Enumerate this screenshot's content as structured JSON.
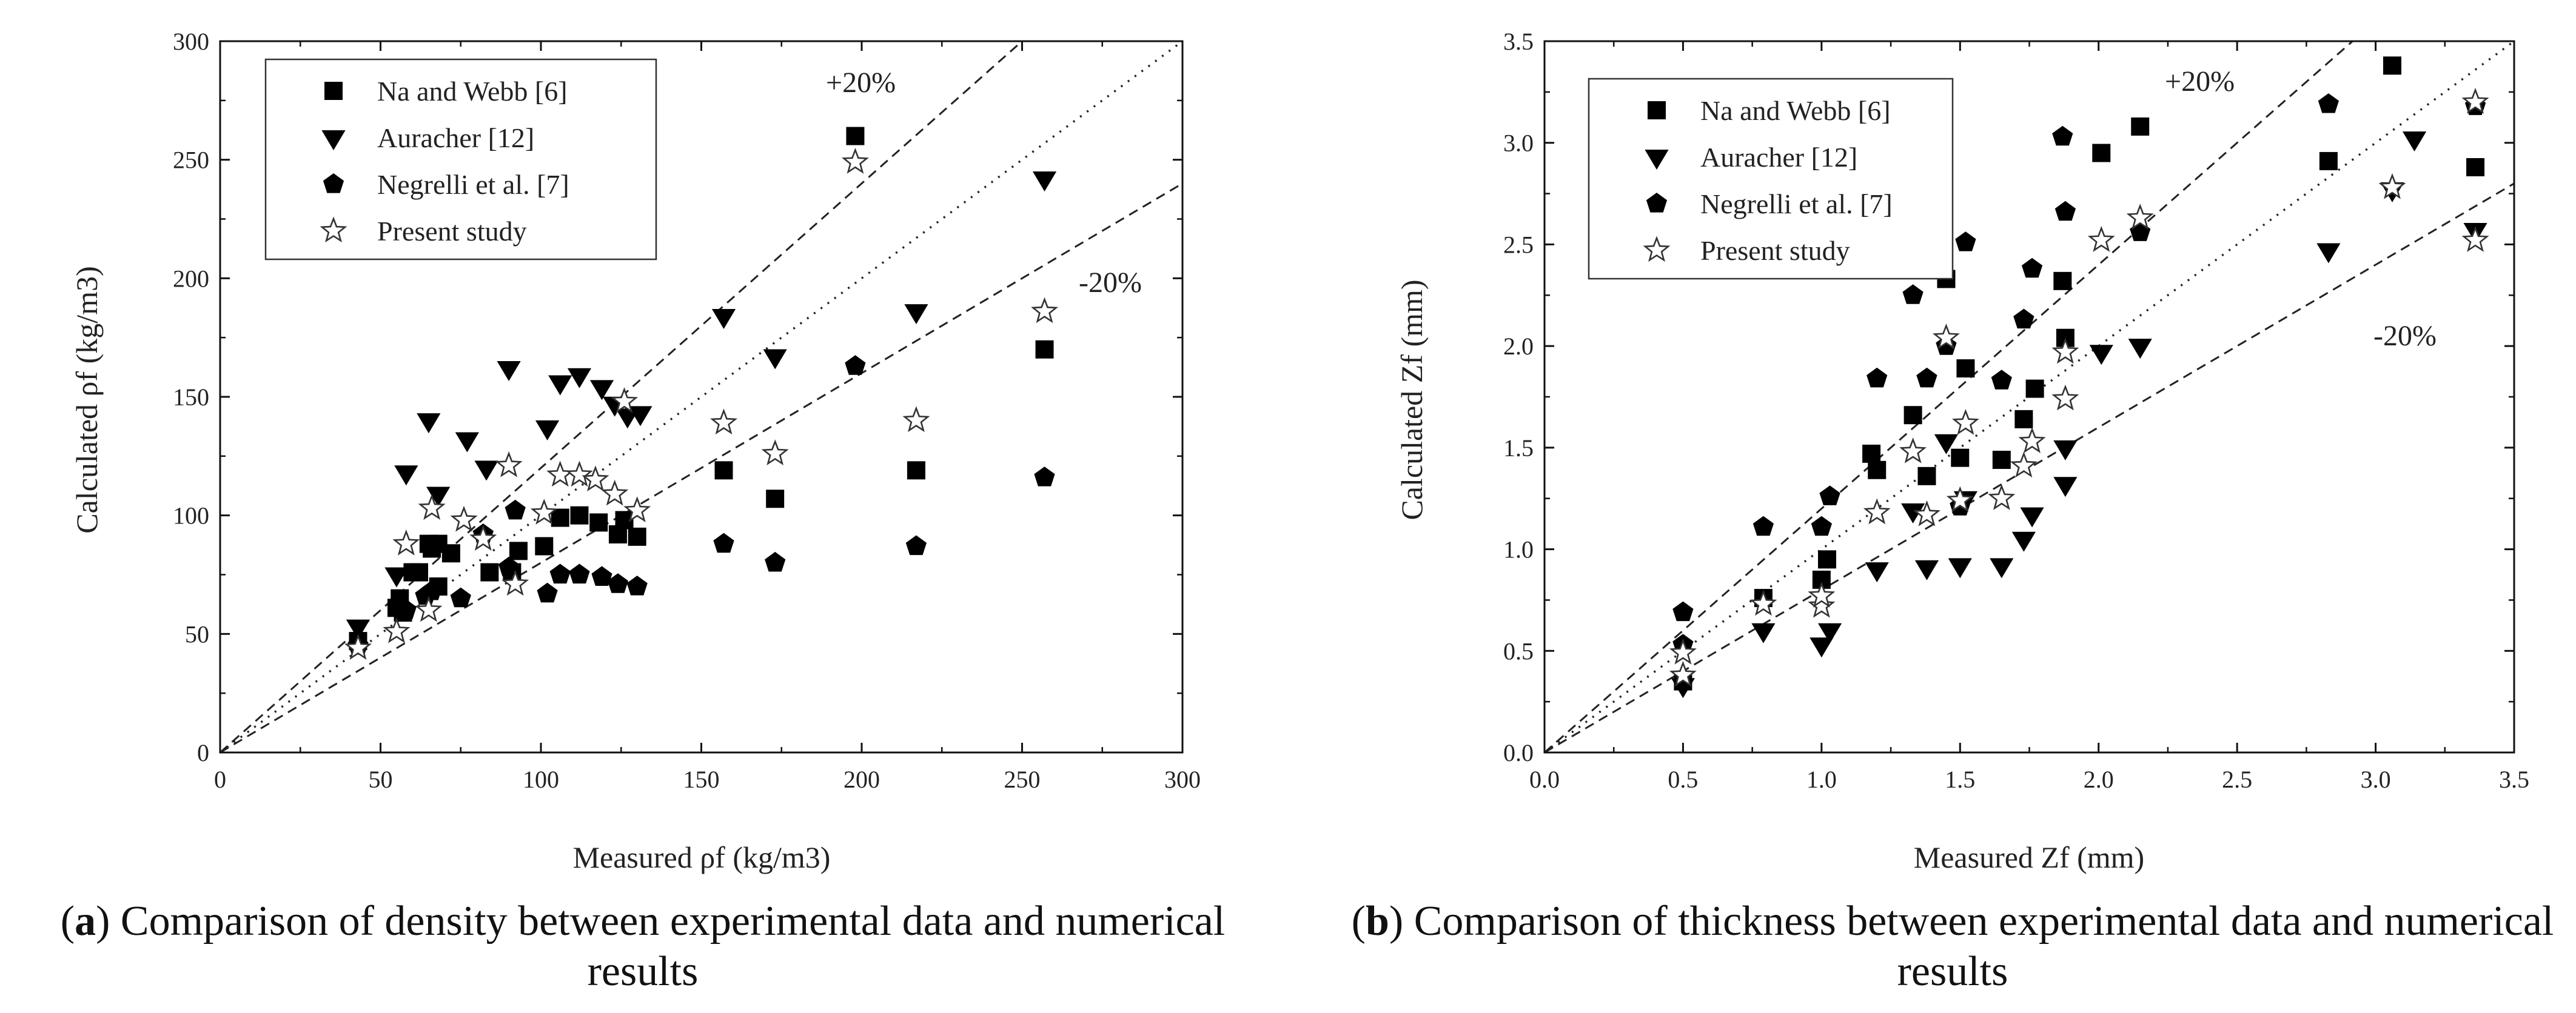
{
  "chart_data": [
    {
      "type": "scatter",
      "panel": "a",
      "xlabel": "Measured ρf (kg/m3)",
      "ylabel": "Calculated ρf (kg/m3)",
      "xlim": [
        0,
        300
      ],
      "ylim": [
        0,
        300
      ],
      "xticks": [
        "0",
        "50",
        "100",
        "150",
        "200",
        "250",
        "300"
      ],
      "yticks": [
        "0",
        "50",
        "100",
        "150",
        "200",
        "250",
        "300"
      ],
      "reference_lines": {
        "plus20_label": "+20%",
        "minus20_label": "-20%",
        "plus_factor": 1.2,
        "minus_factor": 0.8
      },
      "legend": [
        "Na and Webb [6]",
        "Auracher [12]",
        "Negrelli et al. [7]",
        "Present study"
      ],
      "series": [
        {
          "name": "Na and Webb [6]",
          "marker": "square",
          "points": [
            [
              43,
              47
            ],
            [
              55,
              61
            ],
            [
              56,
              65
            ],
            [
              57,
              59
            ],
            [
              60,
              76
            ],
            [
              62,
              76
            ],
            [
              65,
              88
            ],
            [
              66,
              86
            ],
            [
              68,
              88
            ],
            [
              68,
              70
            ],
            [
              72,
              84
            ],
            [
              84,
              76
            ],
            [
              91,
              76
            ],
            [
              93,
              85
            ],
            [
              101,
              87
            ],
            [
              106,
              99
            ],
            [
              112,
              100
            ],
            [
              118,
              97
            ],
            [
              124,
              92
            ],
            [
              126,
              98
            ],
            [
              130,
              91
            ],
            [
              157,
              119
            ],
            [
              173,
              107
            ],
            [
              198,
              260
            ],
            [
              217,
              119
            ],
            [
              257,
              170
            ]
          ]
        },
        {
          "name": "Auracher [12]",
          "marker": "triangle-down",
          "points": [
            [
              43,
              53
            ],
            [
              55,
              75
            ],
            [
              58,
              118
            ],
            [
              65,
              140
            ],
            [
              68,
              109
            ],
            [
              77,
              132
            ],
            [
              83,
              120
            ],
            [
              90,
              162
            ],
            [
              102,
              137
            ],
            [
              106,
              156
            ],
            [
              112,
              159
            ],
            [
              119,
              154
            ],
            [
              123,
              147
            ],
            [
              127,
              142
            ],
            [
              131,
              143
            ],
            [
              157,
              184
            ],
            [
              173,
              167
            ],
            [
              217,
              186
            ],
            [
              257,
              242
            ]
          ]
        },
        {
          "name": "Negrelli et al. [7]",
          "marker": "pentagon",
          "points": [
            [
              43,
              45
            ],
            [
              56,
              62
            ],
            [
              58,
              60
            ],
            [
              64,
              66
            ],
            [
              66,
              68
            ],
            [
              75,
              65
            ],
            [
              82,
              92
            ],
            [
              90,
              78
            ],
            [
              92,
              102
            ],
            [
              102,
              67
            ],
            [
              106,
              75
            ],
            [
              112,
              75
            ],
            [
              119,
              74
            ],
            [
              124,
              71
            ],
            [
              130,
              70
            ],
            [
              157,
              88
            ],
            [
              173,
              80
            ],
            [
              198,
              163
            ],
            [
              217,
              87
            ],
            [
              257,
              116
            ]
          ]
        },
        {
          "name": "Present study",
          "marker": "star-open",
          "points": [
            [
              43,
              44
            ],
            [
              55,
              51
            ],
            [
              58,
              88
            ],
            [
              65,
              60
            ],
            [
              66,
              103
            ],
            [
              76,
              98
            ],
            [
              82,
              90
            ],
            [
              90,
              121
            ],
            [
              92,
              71
            ],
            [
              101,
              101
            ],
            [
              106,
              117
            ],
            [
              112,
              117
            ],
            [
              117,
              115
            ],
            [
              123,
              109
            ],
            [
              126,
              148
            ],
            [
              130,
              102
            ],
            [
              157,
              139
            ],
            [
              173,
              126
            ],
            [
              198,
              249
            ],
            [
              217,
              140
            ],
            [
              257,
              186
            ]
          ]
        }
      ]
    },
    {
      "type": "scatter",
      "panel": "b",
      "xlabel": "Measured Zf (mm)",
      "ylabel": "Calculated Zf (mm)",
      "xlim": [
        0,
        3.5
      ],
      "ylim": [
        0,
        3.5
      ],
      "xticks": [
        "0.0",
        "0.5",
        "1.0",
        "1.5",
        "2.0",
        "2.5",
        "3.0",
        "3.5"
      ],
      "yticks": [
        "0.0",
        "0.5",
        "1.0",
        "1.5",
        "2.0",
        "2.5",
        "3.0",
        "3.5"
      ],
      "reference_lines": {
        "plus20_label": "+20%",
        "minus20_label": "-20%",
        "plus_factor": 1.2,
        "minus_factor": 0.8
      },
      "legend": [
        "Na and Webb [6]",
        "Auracher [12]",
        "Negrelli et al. [7]",
        "Present study"
      ],
      "series": [
        {
          "name": "Na and Webb [6]",
          "marker": "square",
          "points": [
            [
              0.5,
              0.35
            ],
            [
              0.79,
              0.76
            ],
            [
              1.0,
              0.85
            ],
            [
              1.02,
              0.95
            ],
            [
              1.18,
              1.47
            ],
            [
              1.2,
              1.39
            ],
            [
              1.33,
              1.66
            ],
            [
              1.38,
              1.36
            ],
            [
              1.45,
              2.33
            ],
            [
              1.5,
              1.45
            ],
            [
              1.52,
              1.89
            ],
            [
              1.65,
              1.44
            ],
            [
              1.73,
              1.64
            ],
            [
              1.77,
              1.79
            ],
            [
              1.87,
              2.32
            ],
            [
              1.88,
              2.04
            ],
            [
              2.01,
              2.95
            ],
            [
              2.15,
              3.08
            ],
            [
              2.83,
              2.91
            ],
            [
              3.06,
              3.38
            ],
            [
              3.36,
              2.88
            ]
          ]
        },
        {
          "name": "Auracher [12]",
          "marker": "triangle-down",
          "points": [
            [
              0.5,
              0.33
            ],
            [
              0.79,
              0.6
            ],
            [
              1.0,
              0.53
            ],
            [
              1.03,
              0.6
            ],
            [
              1.2,
              0.9
            ],
            [
              1.33,
              1.19
            ],
            [
              1.38,
              0.91
            ],
            [
              1.45,
              1.53
            ],
            [
              1.5,
              0.92
            ],
            [
              1.52,
              1.25
            ],
            [
              1.65,
              0.92
            ],
            [
              1.73,
              1.05
            ],
            [
              1.76,
              1.17
            ],
            [
              1.88,
              1.5
            ],
            [
              1.88,
              1.32
            ],
            [
              2.01,
              1.97
            ],
            [
              2.15,
              2.0
            ],
            [
              2.83,
              2.47
            ],
            [
              3.06,
              2.77
            ],
            [
              3.14,
              3.02
            ],
            [
              3.36,
              2.57
            ]
          ]
        },
        {
          "name": "Negrelli et al. [7]",
          "marker": "pentagon",
          "points": [
            [
              0.5,
              0.69
            ],
            [
              0.5,
              0.53
            ],
            [
              0.79,
              1.11
            ],
            [
              1.0,
              1.11
            ],
            [
              1.03,
              1.26
            ],
            [
              1.2,
              1.84
            ],
            [
              1.33,
              2.25
            ],
            [
              1.38,
              1.84
            ],
            [
              1.45,
              2.0
            ],
            [
              1.5,
              1.21
            ],
            [
              1.52,
              2.51
            ],
            [
              1.65,
              1.83
            ],
            [
              1.73,
              2.13
            ],
            [
              1.76,
              2.38
            ],
            [
              1.87,
              3.03
            ],
            [
              1.88,
              2.66
            ],
            [
              2.15,
              2.56
            ],
            [
              2.83,
              3.19
            ],
            [
              3.36,
              3.18
            ]
          ]
        },
        {
          "name": "Present study",
          "marker": "star-open",
          "points": [
            [
              0.5,
              0.38
            ],
            [
              0.5,
              0.49
            ],
            [
              0.79,
              0.73
            ],
            [
              1.0,
              0.72
            ],
            [
              1.0,
              0.77
            ],
            [
              1.2,
              1.18
            ],
            [
              1.33,
              1.48
            ],
            [
              1.38,
              1.17
            ],
            [
              1.45,
              2.04
            ],
            [
              1.5,
              1.24
            ],
            [
              1.52,
              1.62
            ],
            [
              1.65,
              1.25
            ],
            [
              1.73,
              1.41
            ],
            [
              1.76,
              1.53
            ],
            [
              1.88,
              1.97
            ],
            [
              1.88,
              1.74
            ],
            [
              2.01,
              2.52
            ],
            [
              2.15,
              2.63
            ],
            [
              3.06,
              2.78
            ],
            [
              3.36,
              2.52
            ],
            [
              3.36,
              3.2
            ]
          ]
        }
      ]
    }
  ],
  "captions": {
    "a": {
      "tag": "a",
      "text": " Comparison of density between experimental data and numerical results"
    },
    "b": {
      "tag": "b",
      "text": " Comparison of thickness between experimental data and numerical results"
    }
  }
}
